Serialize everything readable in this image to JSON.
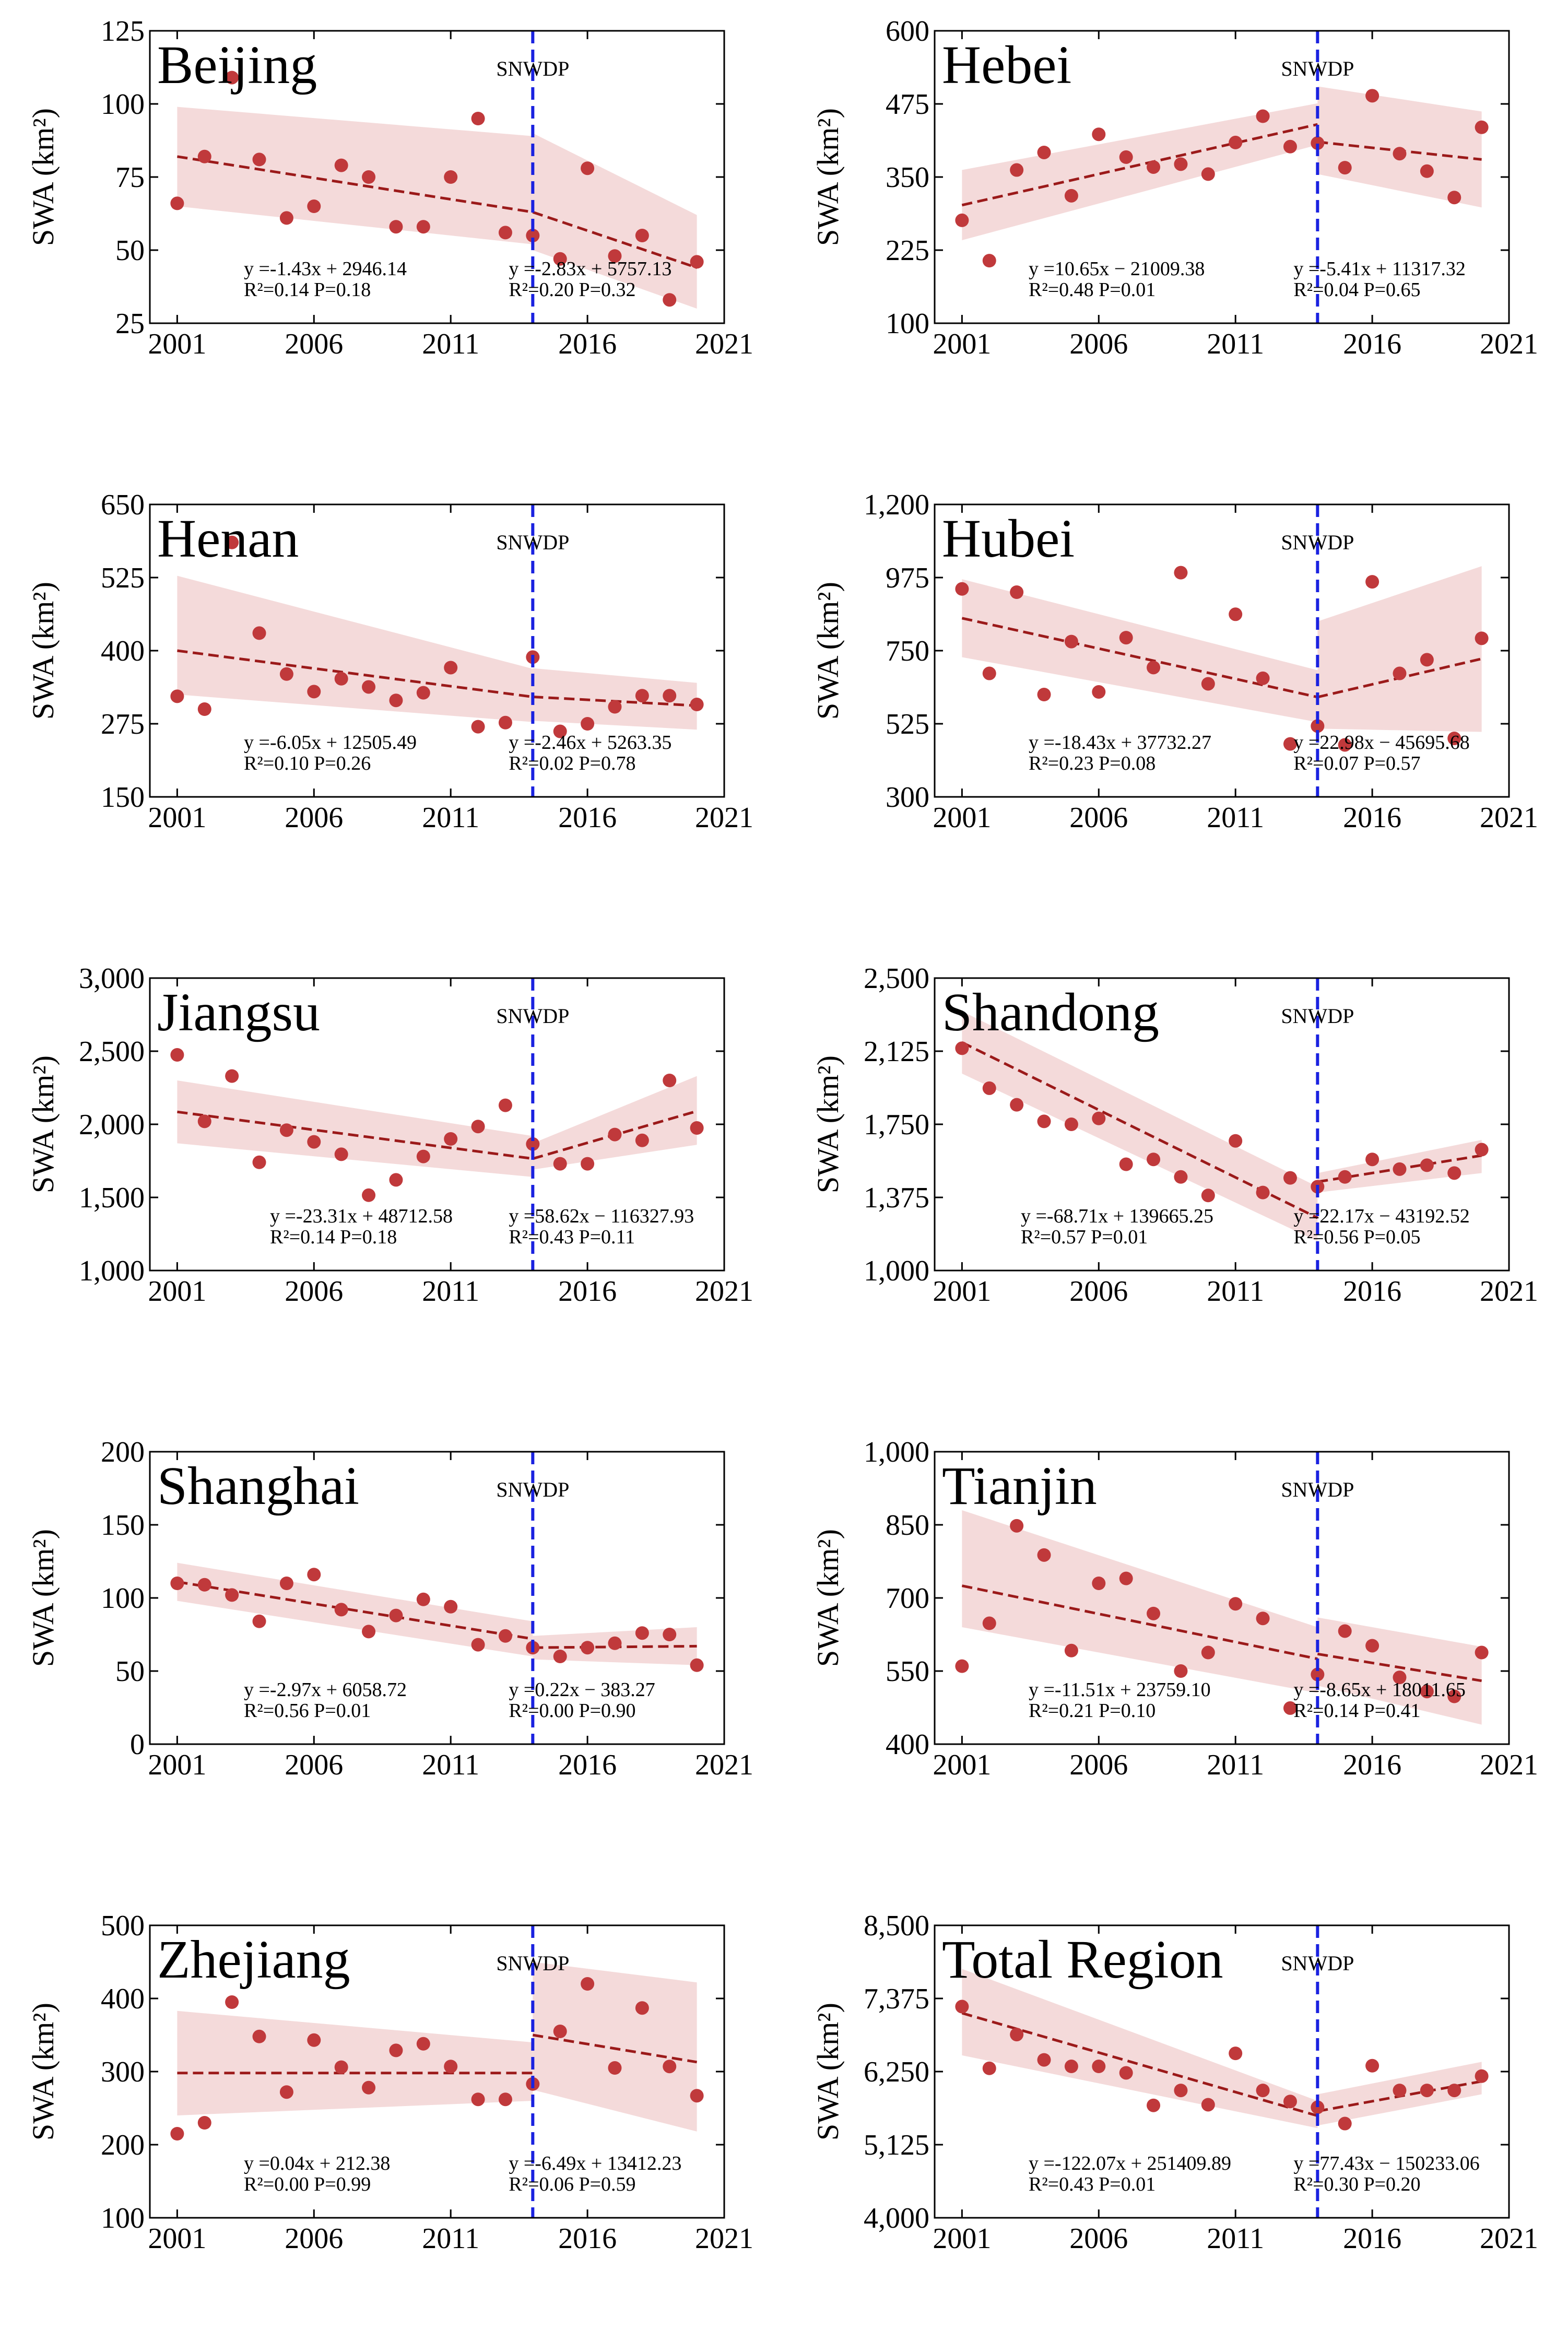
{
  "figure": {
    "marker_label": "SNWDP",
    "marker_year": 2014,
    "x_ticks": [
      2001,
      2006,
      2011,
      2016,
      2021
    ],
    "colors": {
      "points": "#c0393b",
      "fit_line": "#9b1a1a",
      "confidence_band": "#f2d3d3",
      "marker_line": "#1a22e0",
      "axis": "#000000"
    }
  },
  "chart_data": [
    {
      "type": "scatter",
      "title": "Beijing",
      "ylabel": "SWA (km²)",
      "xlim": [
        2000,
        2021
      ],
      "ylim": [
        25,
        125
      ],
      "yticks": [
        25,
        50,
        75,
        100,
        125
      ],
      "ytick_labels": [
        "25",
        "50",
        "75",
        "100",
        "125"
      ],
      "x": [
        2001,
        2002,
        2003,
        2004,
        2005,
        2006,
        2007,
        2008,
        2009,
        2010,
        2011,
        2012,
        2013,
        2014,
        2015,
        2016,
        2017,
        2018,
        2019,
        2020
      ],
      "values": [
        66,
        82,
        109,
        81,
        61,
        65,
        79,
        75,
        58,
        58,
        75,
        95,
        56,
        55,
        47,
        78,
        48,
        55,
        33,
        46
      ],
      "fit_before": {
        "x": [
          2001,
          2014
        ],
        "y": [
          82,
          63
        ],
        "band_upper": [
          99,
          89
        ],
        "band_lower": [
          65,
          52
        ],
        "equation": "y =-1.43x + 2946.14",
        "stats": "R²=0.14  P=0.18"
      },
      "fit_after": {
        "x": [
          2014,
          2020
        ],
        "y": [
          63,
          44
        ],
        "band_upper": [
          90,
          62
        ],
        "band_lower": [
          50,
          30
        ],
        "equation": "y =-2.83x + 5757.13",
        "stats": "R²=0.20  P=0.32"
      }
    },
    {
      "type": "scatter",
      "title": "Hebei",
      "ylabel": "SWA (km²)",
      "xlim": [
        2000,
        2021
      ],
      "ylim": [
        100,
        600
      ],
      "yticks": [
        100,
        225,
        350,
        475,
        600
      ],
      "ytick_labels": [
        "100",
        "225",
        "350",
        "475",
        "600"
      ],
      "x": [
        2001,
        2002,
        2003,
        2004,
        2005,
        2006,
        2007,
        2008,
        2009,
        2010,
        2011,
        2012,
        2013,
        2014,
        2015,
        2016,
        2017,
        2018,
        2019,
        2020
      ],
      "values": [
        276,
        207,
        362,
        392,
        318,
        423,
        384,
        367,
        372,
        355,
        409,
        454,
        402,
        408,
        366,
        489,
        390,
        360,
        315,
        435
      ],
      "fit_before": {
        "x": [
          2001,
          2014
        ],
        "y": [
          302,
          440
        ],
        "band_upper": [
          362,
          476
        ],
        "band_lower": [
          242,
          405
        ],
        "equation": "y =10.65x − 21009.38",
        "stats": "R²=0.48  P=0.01"
      },
      "fit_after": {
        "x": [
          2014,
          2020
        ],
        "y": [
          410,
          380
        ],
        "band_upper": [
          505,
          462
        ],
        "band_lower": [
          355,
          298
        ],
        "equation": "y =-5.41x + 11317.32",
        "stats": "R²=0.04  P=0.65"
      }
    },
    {
      "type": "scatter",
      "title": "Henan",
      "ylabel": "SWA (km²)",
      "xlim": [
        2000,
        2021
      ],
      "ylim": [
        150,
        650
      ],
      "yticks": [
        150,
        275,
        400,
        525,
        650
      ],
      "ytick_labels": [
        "150",
        "275",
        "400",
        "525",
        "650"
      ],
      "x": [
        2001,
        2002,
        2003,
        2004,
        2005,
        2006,
        2007,
        2008,
        2009,
        2010,
        2011,
        2012,
        2013,
        2014,
        2015,
        2016,
        2017,
        2018,
        2019,
        2020
      ],
      "values": [
        322,
        300,
        585,
        430,
        360,
        330,
        352,
        338,
        315,
        328,
        371,
        270,
        277,
        389,
        262,
        275,
        304,
        323,
        323,
        308
      ],
      "fit_before": {
        "x": [
          2001,
          2014
        ],
        "y": [
          400,
          321
        ],
        "band_upper": [
          528,
          369
        ],
        "band_lower": [
          325,
          278
        ],
        "equation": "y =-6.05x + 12505.49",
        "stats": "R²=0.10  P=0.26"
      },
      "fit_after": {
        "x": [
          2014,
          2020
        ],
        "y": [
          321,
          306
        ],
        "band_upper": [
          370,
          345
        ],
        "band_lower": [
          280,
          265
        ],
        "equation": "y =-2.46x + 5263.35",
        "stats": "R²=0.02  P=0.78"
      }
    },
    {
      "type": "scatter",
      "title": "Hubei",
      "ylabel": "SWA (km²)",
      "xlim": [
        2000,
        2021
      ],
      "ylim": [
        300,
        1200
      ],
      "yticks": [
        300,
        525,
        750,
        975,
        1200
      ],
      "ytick_labels": [
        "300",
        "525",
        "750",
        "975",
        "1,200"
      ],
      "x": [
        2001,
        2002,
        2003,
        2004,
        2005,
        2006,
        2007,
        2008,
        2009,
        2010,
        2011,
        2012,
        2013,
        2014,
        2015,
        2016,
        2017,
        2018,
        2019,
        2020
      ],
      "values": [
        940,
        680,
        930,
        615,
        778,
        623,
        790,
        698,
        990,
        648,
        862,
        665,
        463,
        518,
        460,
        962,
        680,
        722,
        480,
        788
      ],
      "fit_before": {
        "x": [
          2001,
          2014
        ],
        "y": [
          850,
          607
        ],
        "band_upper": [
          970,
          690
        ],
        "band_lower": [
          730,
          530
        ],
        "equation": "y =-18.43x + 37732.27",
        "stats": "R²=0.23  P=0.08"
      },
      "fit_after": {
        "x": [
          2014,
          2020
        ],
        "y": [
          607,
          725
        ],
        "band_upper": [
          840,
          1010
        ],
        "band_lower": [
          510,
          500
        ],
        "equation": "y =22.98x − 45695.68",
        "stats": "R²=0.07  P=0.57"
      }
    },
    {
      "type": "scatter",
      "title": "Jiangsu",
      "ylabel": "SWA (km²)",
      "xlim": [
        2000,
        2021
      ],
      "ylim": [
        1000,
        3000
      ],
      "yticks": [
        1000,
        1500,
        2000,
        2500,
        3000
      ],
      "ytick_labels": [
        "1,000",
        "1,500",
        "2,000",
        "2,500",
        "3,000"
      ],
      "x": [
        2001,
        2002,
        2003,
        2004,
        2005,
        2006,
        2007,
        2008,
        2009,
        2010,
        2011,
        2012,
        2013,
        2014,
        2015,
        2016,
        2017,
        2018,
        2019,
        2020
      ],
      "values": [
        2475,
        2020,
        2330,
        1740,
        1960,
        1880,
        1795,
        1515,
        1620,
        1780,
        1900,
        1985,
        2130,
        1865,
        1730,
        1730,
        1930,
        1890,
        2300,
        1975
      ],
      "fit_before": {
        "x": [
          2001,
          2014
        ],
        "y": [
          2085,
          1765
        ],
        "band_upper": [
          2300,
          1920
        ],
        "band_lower": [
          1870,
          1640
        ],
        "equation": "y =-23.31x + 48712.58",
        "stats": "R²=0.14  P=0.18"
      },
      "fit_after": {
        "x": [
          2014,
          2020
        ],
        "y": [
          1765,
          2090
        ],
        "band_upper": [
          1870,
          2330
        ],
        "band_lower": [
          1690,
          1860
        ],
        "equation": "y =58.62x − 116327.93",
        "stats": "R²=0.43  P=0.11"
      }
    },
    {
      "type": "scatter",
      "title": "Shandong",
      "ylabel": "SWA (km²)",
      "xlim": [
        2000,
        2021
      ],
      "ylim": [
        1000,
        2500
      ],
      "yticks": [
        1000,
        1375,
        1750,
        2125,
        2500
      ],
      "ytick_labels": [
        "1,000",
        "1,375",
        "1,750",
        "2,125",
        "2,500"
      ],
      "x": [
        2001,
        2002,
        2003,
        2004,
        2005,
        2006,
        2007,
        2008,
        2009,
        2010,
        2011,
        2012,
        2013,
        2014,
        2015,
        2016,
        2017,
        2018,
        2019,
        2020
      ],
      "values": [
        2140,
        1935,
        1850,
        1765,
        1750,
        1780,
        1545,
        1570,
        1480,
        1385,
        1665,
        1400,
        1475,
        1430,
        1480,
        1570,
        1520,
        1540,
        1500,
        1620
      ],
      "fit_before": {
        "x": [
          2001,
          2014
        ],
        "y": [
          2170,
          1270
        ],
        "band_upper": [
          2330,
          1430
        ],
        "band_lower": [
          2010,
          1150
        ],
        "equation": "y =-68.71x + 139665.25",
        "stats": "R²=0.57  P=0.01"
      },
      "fit_after": {
        "x": [
          2014,
          2020
        ],
        "y": [
          1455,
          1590
        ],
        "band_upper": [
          1500,
          1670
        ],
        "band_lower": [
          1400,
          1500
        ],
        "equation": "y =22.17x − 43192.52",
        "stats": "R²=0.56  P=0.05"
      }
    },
    {
      "type": "scatter",
      "title": "Shanghai",
      "ylabel": "SWA (km²)",
      "xlim": [
        2000,
        2021
      ],
      "ylim": [
        0,
        200
      ],
      "yticks": [
        0,
        50,
        100,
        150,
        200
      ],
      "ytick_labels": [
        "0",
        "50",
        "100",
        "150",
        "200"
      ],
      "x": [
        2001,
        2002,
        2003,
        2004,
        2005,
        2006,
        2007,
        2008,
        2009,
        2010,
        2011,
        2012,
        2013,
        2014,
        2015,
        2016,
        2017,
        2018,
        2019,
        2020
      ],
      "values": [
        110,
        109,
        102,
        84,
        110,
        116,
        92,
        77,
        88,
        99,
        94,
        68,
        74,
        66,
        60,
        66,
        69,
        76,
        75,
        54
      ],
      "fit_before": {
        "x": [
          2001,
          2014
        ],
        "y": [
          111,
          72
        ],
        "band_upper": [
          124,
          84
        ],
        "band_lower": [
          98,
          60
        ],
        "equation": "y =-2.97x + 6058.72",
        "stats": "R²=0.56  P=0.01"
      },
      "fit_after": {
        "x": [
          2014,
          2020
        ],
        "y": [
          66,
          67
        ],
        "band_upper": [
          74,
          80
        ],
        "band_lower": [
          58,
          54
        ],
        "equation": "y =0.22x − 383.27",
        "stats": "R²=0.00  P=0.90"
      }
    },
    {
      "type": "scatter",
      "title": "Tianjin",
      "ylabel": "SWA (km²)",
      "xlim": [
        2000,
        2021
      ],
      "ylim": [
        400,
        1000
      ],
      "yticks": [
        400,
        550,
        700,
        850,
        1000
      ],
      "ytick_labels": [
        "400",
        "550",
        "700",
        "850",
        "1,000"
      ],
      "x": [
        2001,
        2002,
        2003,
        2004,
        2005,
        2006,
        2007,
        2008,
        2009,
        2010,
        2011,
        2012,
        2013,
        2014,
        2015,
        2016,
        2017,
        2018,
        2019,
        2020
      ],
      "values": [
        560,
        648,
        848,
        788,
        592,
        730,
        740,
        668,
        550,
        588,
        688,
        658,
        474,
        543,
        632,
        602,
        537,
        508,
        498,
        588
      ],
      "fit_before": {
        "x": [
          2001,
          2014
        ],
        "y": [
          725,
          575
        ],
        "band_upper": [
          880,
          640
        ],
        "band_lower": [
          640,
          505
        ],
        "equation": "y =-11.51x + 23759.10",
        "stats": "R²=0.21  P=0.10"
      },
      "fit_after": {
        "x": [
          2014,
          2020
        ],
        "y": [
          585,
          530
        ],
        "band_upper": [
          660,
          600
        ],
        "band_lower": [
          520,
          440
        ],
        "equation": "y =-8.65x + 18011.65",
        "stats": "R²=0.14  P=0.41"
      }
    },
    {
      "type": "scatter",
      "title": "Zhejiang",
      "ylabel": "SWA (km²)",
      "xlim": [
        2000,
        2021
      ],
      "ylim": [
        100,
        500
      ],
      "yticks": [
        100,
        200,
        300,
        400,
        500
      ],
      "ytick_labels": [
        "100",
        "200",
        "300",
        "400",
        "500"
      ],
      "x": [
        2001,
        2002,
        2003,
        2004,
        2005,
        2006,
        2007,
        2008,
        2009,
        2010,
        2011,
        2012,
        2013,
        2014,
        2015,
        2016,
        2017,
        2018,
        2019,
        2020
      ],
      "values": [
        215,
        230,
        395,
        348,
        272,
        343,
        306,
        278,
        329,
        338,
        307,
        262,
        262,
        283,
        355,
        420,
        305,
        387,
        307,
        267
      ],
      "fit_before": {
        "x": [
          2001,
          2014
        ],
        "y": [
          298,
          298
        ],
        "band_upper": [
          383,
          340
        ],
        "band_lower": [
          240,
          260
        ],
        "equation": "y =0.04x + 212.38",
        "stats": "R²=0.00  P=0.99"
      },
      "fit_after": {
        "x": [
          2014,
          2020
        ],
        "y": [
          350,
          313
        ],
        "band_upper": [
          450,
          422
        ],
        "band_lower": [
          275,
          218
        ],
        "equation": "y =-6.49x + 13412.23",
        "stats": "R²=0.06  P=0.59"
      }
    },
    {
      "type": "scatter",
      "title": "Total Region",
      "ylabel": "SWA (km²)",
      "xlim": [
        2000,
        2021
      ],
      "ylim": [
        4000,
        8500
      ],
      "yticks": [
        4000,
        5125,
        6250,
        7375,
        8500
      ],
      "ytick_labels": [
        "4,000",
        "5,125",
        "6,250",
        "7,375",
        "8,500"
      ],
      "x": [
        2001,
        2002,
        2003,
        2004,
        2005,
        2006,
        2007,
        2008,
        2009,
        2010,
        2011,
        2012,
        2013,
        2014,
        2015,
        2016,
        2017,
        2018,
        2019,
        2020
      ],
      "values": [
        7250,
        6300,
        6820,
        6430,
        6330,
        6330,
        6230,
        5730,
        5960,
        5740,
        6530,
        5960,
        5790,
        5700,
        5450,
        6340,
        5960,
        5960,
        5960,
        6180
      ],
      "fit_before": {
        "x": [
          2001,
          2014
        ],
        "y": [
          7150,
          5570
        ],
        "band_upper": [
          7830,
          5800
        ],
        "band_lower": [
          6500,
          5380
        ],
        "equation": "y =-122.07x + 251409.89",
        "stats": "R²=0.43  P=0.01"
      },
      "fit_after": {
        "x": [
          2014,
          2020
        ],
        "y": [
          5640,
          6100
        ],
        "band_upper": [
          5900,
          6400
        ],
        "band_lower": [
          5420,
          5900
        ],
        "equation": "y =77.43x − 150233.06",
        "stats": "R²=0.30  P=0.20"
      }
    }
  ]
}
